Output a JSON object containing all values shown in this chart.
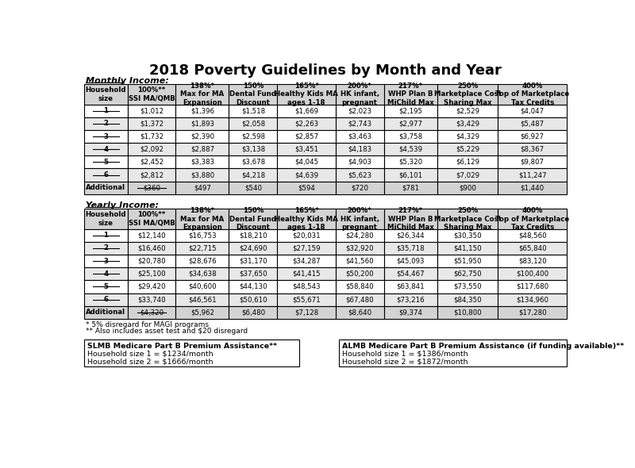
{
  "title": "2018 Poverty Guidelines by Month and Year",
  "monthly_label": "Monthly Income:",
  "yearly_label": "Yearly Income:",
  "col_headers": [
    "Household\nsize",
    "100%**\nSSI MA/QMB",
    "138%*\nMax for MA\nExpansion",
    "150%\nDental Fund\nDiscount",
    "165%*\nHealthy Kids MA\nages 1-18",
    "200%*\nHK infant,\npregnant",
    "217%*\nWHP Plan B\nMiChild Max",
    "250%\nMarketplace Cost\nSharing Max",
    "400%\nTop of Marketplace\nTax Credits"
  ],
  "monthly_rows": [
    [
      "1",
      "$1,012",
      "$1,396",
      "$1,518",
      "$1,669",
      "$2,023",
      "$2,195",
      "$2,529",
      "$4,047"
    ],
    [
      "2",
      "$1,372",
      "$1,893",
      "$2,058",
      "$2,263",
      "$2,743",
      "$2,977",
      "$3,429",
      "$5,487"
    ],
    [
      "3",
      "$1,732",
      "$2,390",
      "$2,598",
      "$2,857",
      "$3,463",
      "$3,758",
      "$4,329",
      "$6,927"
    ],
    [
      "4",
      "$2,092",
      "$2,887",
      "$3,138",
      "$3,451",
      "$4,183",
      "$4,539",
      "$5,229",
      "$8,367"
    ],
    [
      "5",
      "$2,452",
      "$3,383",
      "$3,678",
      "$4,045",
      "$4,903",
      "$5,320",
      "$6,129",
      "$9,807"
    ],
    [
      "6",
      "$2,812",
      "$3,880",
      "$4,218",
      "$4,639",
      "$5,623",
      "$6,101",
      "$7,029",
      "$11,247"
    ],
    [
      "Additional",
      "$360",
      "$497",
      "$540",
      "$594",
      "$720",
      "$781",
      "$900",
      "$1,440"
    ]
  ],
  "monthly_strikethrough": [
    [
      true,
      false,
      false,
      false,
      false,
      false,
      false,
      false,
      false
    ],
    [
      true,
      false,
      false,
      false,
      false,
      false,
      false,
      false,
      false
    ],
    [
      true,
      false,
      false,
      false,
      false,
      false,
      false,
      false,
      false
    ],
    [
      true,
      false,
      false,
      false,
      false,
      false,
      false,
      false,
      false
    ],
    [
      true,
      false,
      false,
      false,
      false,
      false,
      false,
      false,
      false
    ],
    [
      true,
      false,
      false,
      false,
      false,
      false,
      false,
      false,
      false
    ],
    [
      false,
      true,
      false,
      false,
      false,
      false,
      false,
      false,
      false
    ]
  ],
  "yearly_rows": [
    [
      "1",
      "$12,140",
      "$16,753",
      "$18,210",
      "$20,031",
      "$24,280",
      "$26,344",
      "$30,350",
      "$48,560"
    ],
    [
      "2",
      "$16,460",
      "$22,715",
      "$24,690",
      "$27,159",
      "$32,920",
      "$35,718",
      "$41,150",
      "$65,840"
    ],
    [
      "3",
      "$20,780",
      "$28,676",
      "$31,170",
      "$34,287",
      "$41,560",
      "$45,093",
      "$51,950",
      "$83,120"
    ],
    [
      "4",
      "$25,100",
      "$34,638",
      "$37,650",
      "$41,415",
      "$50,200",
      "$54,467",
      "$62,750",
      "$100,400"
    ],
    [
      "5",
      "$29,420",
      "$40,600",
      "$44,130",
      "$48,543",
      "$58,840",
      "$63,841",
      "$73,550",
      "$117,680"
    ],
    [
      "6",
      "$33,740",
      "$46,561",
      "$50,610",
      "$55,671",
      "$67,480",
      "$73,216",
      "$84,350",
      "$134,960"
    ],
    [
      "Additional",
      "$4,320",
      "$5,962",
      "$6,480",
      "$7,128",
      "$8,640",
      "$9,374",
      "$10,800",
      "$17,280"
    ]
  ],
  "yearly_strikethrough": [
    [
      true,
      false,
      false,
      false,
      false,
      false,
      false,
      false,
      false
    ],
    [
      true,
      false,
      false,
      false,
      false,
      false,
      false,
      false,
      false
    ],
    [
      true,
      false,
      false,
      false,
      false,
      false,
      false,
      false,
      false
    ],
    [
      true,
      false,
      false,
      false,
      false,
      false,
      false,
      false,
      false
    ],
    [
      true,
      false,
      false,
      false,
      false,
      false,
      false,
      false,
      false
    ],
    [
      true,
      false,
      false,
      false,
      false,
      false,
      false,
      false,
      false
    ],
    [
      false,
      true,
      false,
      false,
      false,
      false,
      false,
      false,
      false
    ]
  ],
  "footnotes": [
    "* 5% disregard for MAGI programs",
    "** Also includes asset test and $20 disregard"
  ],
  "slmb_title": "SLMB Medicare Part B Premium Assistance**",
  "slmb_lines": [
    "Household size 1 = $1234/month",
    "Household size 2 = $1666/month"
  ],
  "almb_title": "ALMB Medicare Part B Premium Assistance (if funding available)**",
  "almb_lines": [
    "Household size 1 = $1386/month",
    "Household size 2 = $1872/month"
  ],
  "header_bg": "#d3d3d3",
  "row_bg_odd": "#ffffff",
  "row_bg_even": "#e8e8e8",
  "row_bg_additional": "#d3d3d3",
  "border_color": "#000000",
  "text_color": "#000000",
  "strikethrough_color": "#000000",
  "col_weights": [
    0.085,
    0.095,
    0.105,
    0.095,
    0.115,
    0.095,
    0.105,
    0.12,
    0.135
  ]
}
